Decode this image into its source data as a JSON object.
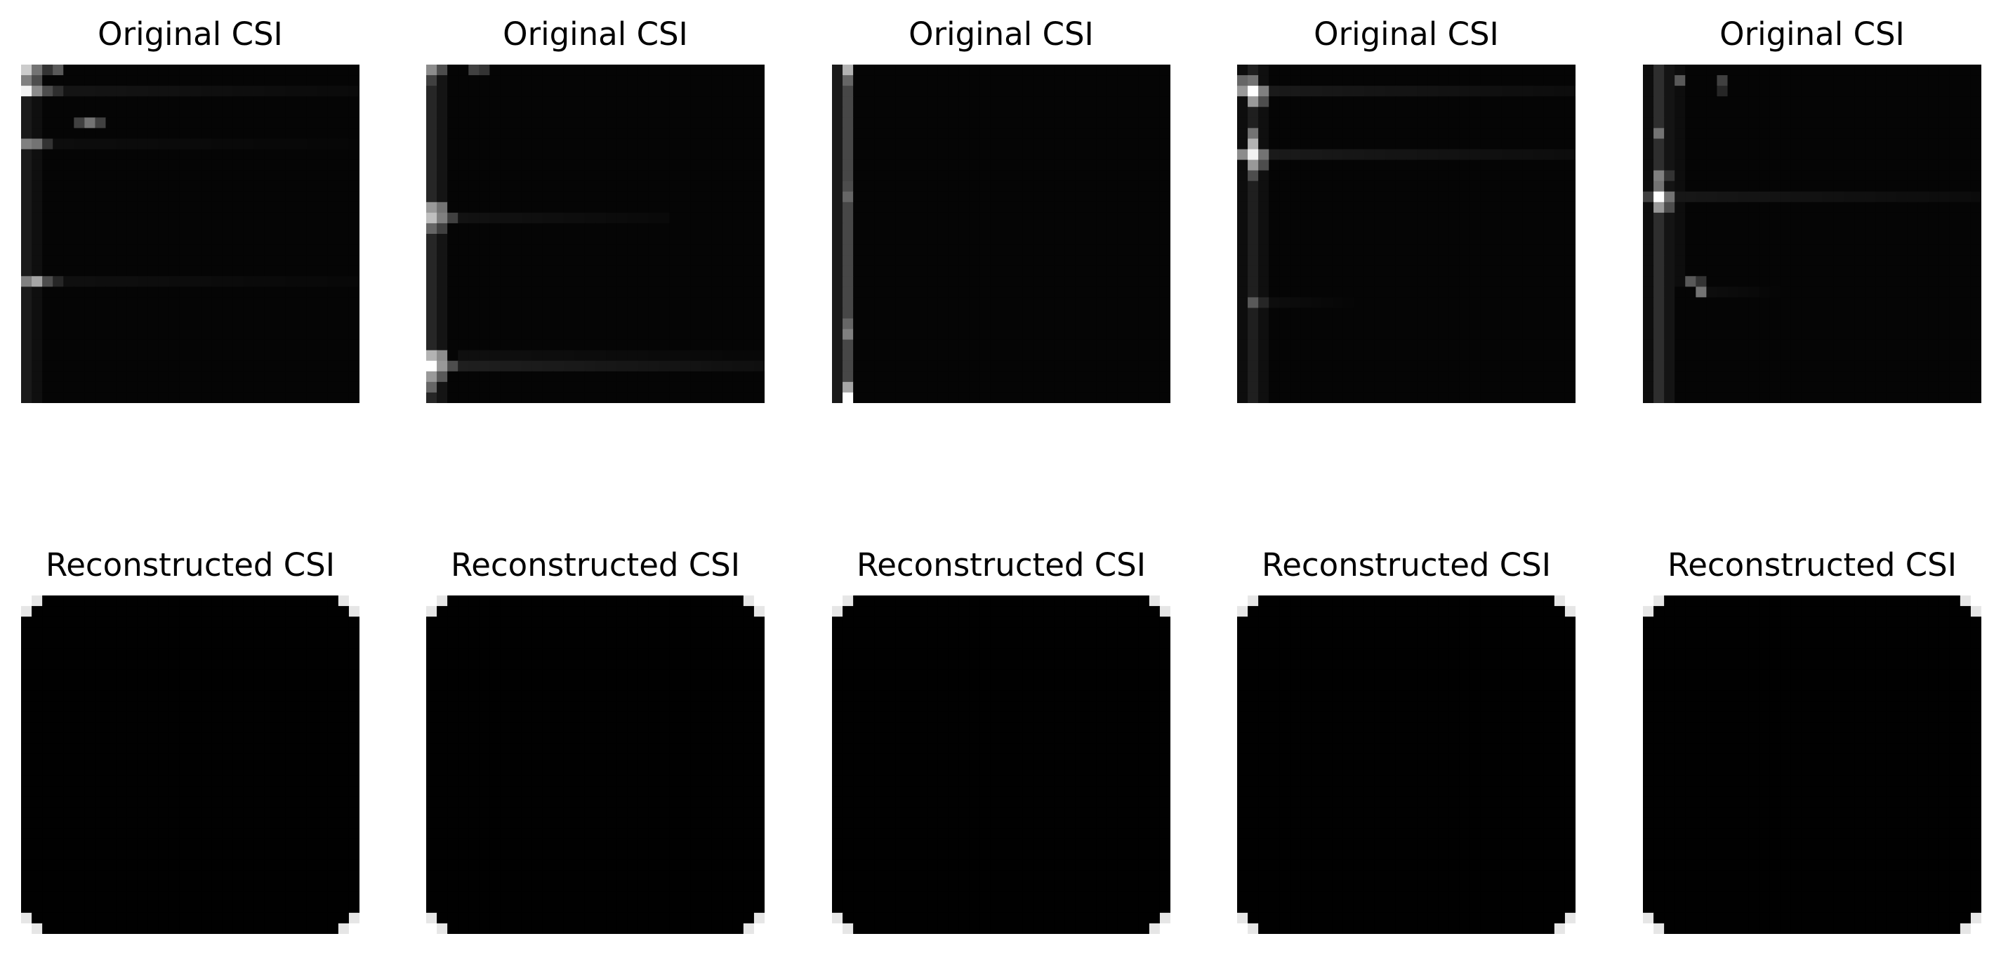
{
  "chart_data": [
    {
      "type": "heatmap",
      "title": "Original CSI",
      "row": "original",
      "grid": [
        32,
        32
      ],
      "colormap": "gray",
      "background_value": 0.02,
      "axis": "off",
      "cells": [
        [
          0,
          0,
          0.8
        ],
        [
          0,
          1,
          0.45
        ],
        [
          0,
          2,
          0.2
        ],
        [
          0,
          3,
          0.35
        ],
        [
          1,
          0,
          0.5
        ],
        [
          1,
          1,
          0.3
        ],
        [
          2,
          0,
          0.95
        ],
        [
          2,
          1,
          0.55
        ],
        [
          2,
          2,
          0.3
        ],
        [
          2,
          3,
          0.18
        ],
        [
          5,
          6,
          0.45
        ],
        [
          5,
          5,
          0.25
        ],
        [
          5,
          7,
          0.25
        ],
        [
          7,
          0,
          0.5
        ],
        [
          7,
          1,
          0.45
        ],
        [
          7,
          2,
          0.2
        ],
        [
          20,
          0,
          0.5
        ],
        [
          20,
          1,
          0.65
        ],
        [
          20,
          2,
          0.3
        ],
        [
          20,
          3,
          0.15
        ]
      ],
      "streaks": [
        [
          2,
          4,
          31,
          0.08
        ],
        [
          7,
          3,
          31,
          0.05
        ],
        [
          20,
          4,
          31,
          0.06
        ]
      ],
      "columns": [
        [
          0,
          0,
          31,
          0.1
        ],
        [
          1,
          0,
          31,
          0.06
        ]
      ]
    },
    {
      "type": "heatmap",
      "title": "Original CSI",
      "row": "original",
      "grid": [
        32,
        32
      ],
      "colormap": "gray",
      "background_value": 0.02,
      "axis": "off",
      "cells": [
        [
          0,
          0,
          0.55
        ],
        [
          0,
          1,
          0.3
        ],
        [
          0,
          4,
          0.25
        ],
        [
          0,
          5,
          0.2
        ],
        [
          1,
          0,
          0.25
        ],
        [
          13,
          0,
          0.6
        ],
        [
          13,
          1,
          0.45
        ],
        [
          14,
          0,
          0.75
        ],
        [
          14,
          1,
          0.5
        ],
        [
          14,
          2,
          0.25
        ],
        [
          15,
          0,
          0.4
        ],
        [
          15,
          1,
          0.25
        ],
        [
          27,
          0,
          0.7
        ],
        [
          27,
          1,
          0.55
        ],
        [
          28,
          0,
          1.0
        ],
        [
          28,
          1,
          0.6
        ],
        [
          28,
          2,
          0.3
        ],
        [
          29,
          0,
          0.6
        ],
        [
          29,
          1,
          0.35
        ],
        [
          30,
          0,
          0.4
        ]
      ],
      "streaks": [
        [
          14,
          3,
          22,
          0.07
        ],
        [
          28,
          3,
          31,
          0.12
        ],
        [
          27,
          3,
          31,
          0.06
        ]
      ],
      "columns": [
        [
          0,
          0,
          31,
          0.15
        ],
        [
          1,
          0,
          31,
          0.08
        ]
      ]
    },
    {
      "type": "heatmap",
      "title": "Original CSI",
      "row": "original",
      "grid": [
        32,
        32
      ],
      "colormap": "gray",
      "background_value": 0.02,
      "axis": "off",
      "cells": [
        [
          0,
          1,
          0.7
        ],
        [
          1,
          1,
          0.4
        ],
        [
          11,
          1,
          0.3
        ],
        [
          12,
          1,
          0.4
        ],
        [
          24,
          1,
          0.4
        ],
        [
          25,
          1,
          0.5
        ],
        [
          30,
          1,
          0.65
        ],
        [
          31,
          1,
          1.0
        ],
        [
          31,
          0,
          0.05
        ]
      ],
      "streaks": [],
      "columns": [
        [
          0,
          0,
          31,
          0.1
        ],
        [
          1,
          0,
          31,
          0.28
        ]
      ]
    },
    {
      "type": "heatmap",
      "title": "Original CSI",
      "row": "original",
      "grid": [
        32,
        32
      ],
      "colormap": "gray",
      "background_value": 0.02,
      "axis": "off",
      "cells": [
        [
          1,
          0,
          0.4
        ],
        [
          1,
          1,
          0.45
        ],
        [
          2,
          1,
          1.0
        ],
        [
          2,
          0,
          0.6
        ],
        [
          2,
          2,
          0.5
        ],
        [
          3,
          1,
          0.6
        ],
        [
          3,
          2,
          0.3
        ],
        [
          6,
          1,
          0.45
        ],
        [
          7,
          1,
          0.7
        ],
        [
          8,
          1,
          0.95
        ],
        [
          8,
          0,
          0.55
        ],
        [
          8,
          2,
          0.45
        ],
        [
          9,
          1,
          0.6
        ],
        [
          9,
          2,
          0.3
        ],
        [
          10,
          1,
          0.3
        ],
        [
          22,
          1,
          0.35
        ],
        [
          22,
          2,
          0.15
        ]
      ],
      "streaks": [
        [
          2,
          3,
          31,
          0.1
        ],
        [
          8,
          3,
          31,
          0.1
        ],
        [
          22,
          3,
          10,
          0.05
        ]
      ],
      "columns": [
        [
          0,
          0,
          31,
          0.05
        ],
        [
          1,
          0,
          31,
          0.12
        ],
        [
          2,
          0,
          31,
          0.06
        ]
      ]
    },
    {
      "type": "heatmap",
      "title": "Original CSI",
      "row": "original",
      "grid": [
        32,
        32
      ],
      "colormap": "gray",
      "background_value": 0.02,
      "axis": "off",
      "cells": [
        [
          1,
          3,
          0.35
        ],
        [
          1,
          7,
          0.25
        ],
        [
          2,
          7,
          0.15
        ],
        [
          6,
          1,
          0.45
        ],
        [
          10,
          1,
          0.5
        ],
        [
          10,
          2,
          0.2
        ],
        [
          11,
          1,
          0.45
        ],
        [
          12,
          1,
          1.0
        ],
        [
          12,
          2,
          0.45
        ],
        [
          12,
          0,
          0.25
        ],
        [
          13,
          1,
          0.6
        ],
        [
          13,
          2,
          0.3
        ],
        [
          20,
          4,
          0.35
        ],
        [
          21,
          5,
          0.45
        ],
        [
          20,
          5,
          0.2
        ]
      ],
      "streaks": [
        [
          12,
          3,
          31,
          0.09
        ],
        [
          21,
          6,
          12,
          0.05
        ]
      ],
      "columns": [
        [
          0,
          0,
          31,
          0.05
        ],
        [
          1,
          0,
          31,
          0.18
        ],
        [
          2,
          0,
          31,
          0.08
        ],
        [
          3,
          0,
          20,
          0.05
        ]
      ]
    },
    {
      "type": "heatmap",
      "title": "Reconstructed CSI",
      "row": "reconstructed",
      "grid": [
        32,
        32
      ],
      "colormap": "gray",
      "background_value": 0.005,
      "axis": "off",
      "cells": [
        [
          0,
          0,
          1.0
        ],
        [
          0,
          31,
          1.0
        ],
        [
          31,
          0,
          1.0
        ],
        [
          31,
          31,
          1.0
        ],
        [
          0,
          1,
          0.9
        ],
        [
          1,
          0,
          0.9
        ],
        [
          0,
          30,
          0.9
        ],
        [
          1,
          31,
          0.9
        ],
        [
          31,
          1,
          0.9
        ],
        [
          30,
          0,
          0.9
        ],
        [
          31,
          30,
          0.9
        ],
        [
          30,
          31,
          0.9
        ]
      ],
      "streaks": [],
      "columns": []
    },
    {
      "type": "heatmap",
      "title": "Reconstructed CSI",
      "row": "reconstructed",
      "grid": [
        32,
        32
      ],
      "colormap": "gray",
      "background_value": 0.005,
      "axis": "off",
      "cells": [
        [
          0,
          0,
          1.0
        ],
        [
          0,
          31,
          1.0
        ],
        [
          31,
          0,
          1.0
        ],
        [
          31,
          31,
          1.0
        ],
        [
          0,
          1,
          0.9
        ],
        [
          1,
          0,
          0.9
        ],
        [
          0,
          30,
          0.9
        ],
        [
          1,
          31,
          0.9
        ],
        [
          31,
          1,
          0.9
        ],
        [
          30,
          0,
          0.9
        ],
        [
          31,
          30,
          0.9
        ],
        [
          30,
          31,
          0.9
        ]
      ],
      "streaks": [],
      "columns": []
    },
    {
      "type": "heatmap",
      "title": "Reconstructed CSI",
      "row": "reconstructed",
      "grid": [
        32,
        32
      ],
      "colormap": "gray",
      "background_value": 0.005,
      "axis": "off",
      "cells": [
        [
          0,
          0,
          1.0
        ],
        [
          0,
          31,
          1.0
        ],
        [
          31,
          0,
          1.0
        ],
        [
          31,
          31,
          1.0
        ],
        [
          0,
          1,
          0.9
        ],
        [
          1,
          0,
          0.9
        ],
        [
          0,
          30,
          0.9
        ],
        [
          1,
          31,
          0.9
        ],
        [
          31,
          1,
          0.9
        ],
        [
          30,
          0,
          0.9
        ],
        [
          31,
          30,
          0.9
        ],
        [
          30,
          31,
          0.9
        ]
      ],
      "streaks": [],
      "columns": []
    },
    {
      "type": "heatmap",
      "title": "Reconstructed CSI",
      "row": "reconstructed",
      "grid": [
        32,
        32
      ],
      "colormap": "gray",
      "background_value": 0.005,
      "axis": "off",
      "cells": [
        [
          0,
          0,
          1.0
        ],
        [
          0,
          31,
          1.0
        ],
        [
          31,
          0,
          1.0
        ],
        [
          31,
          31,
          1.0
        ],
        [
          0,
          1,
          0.9
        ],
        [
          1,
          0,
          0.9
        ],
        [
          0,
          30,
          0.9
        ],
        [
          1,
          31,
          0.9
        ],
        [
          31,
          1,
          0.9
        ],
        [
          30,
          0,
          0.9
        ],
        [
          31,
          30,
          0.9
        ],
        [
          30,
          31,
          0.9
        ]
      ],
      "streaks": [],
      "columns": []
    },
    {
      "type": "heatmap",
      "title": "Reconstructed CSI",
      "row": "reconstructed",
      "grid": [
        32,
        32
      ],
      "colormap": "gray",
      "background_value": 0.005,
      "axis": "off",
      "cells": [
        [
          0,
          0,
          1.0
        ],
        [
          0,
          31,
          1.0
        ],
        [
          31,
          0,
          1.0
        ],
        [
          31,
          31,
          1.0
        ],
        [
          0,
          1,
          0.9
        ],
        [
          1,
          0,
          0.9
        ],
        [
          0,
          30,
          0.9
        ],
        [
          1,
          31,
          0.9
        ],
        [
          31,
          1,
          0.9
        ],
        [
          30,
          0,
          0.9
        ],
        [
          31,
          30,
          0.9
        ],
        [
          30,
          31,
          0.9
        ]
      ],
      "streaks": [],
      "columns": []
    }
  ]
}
